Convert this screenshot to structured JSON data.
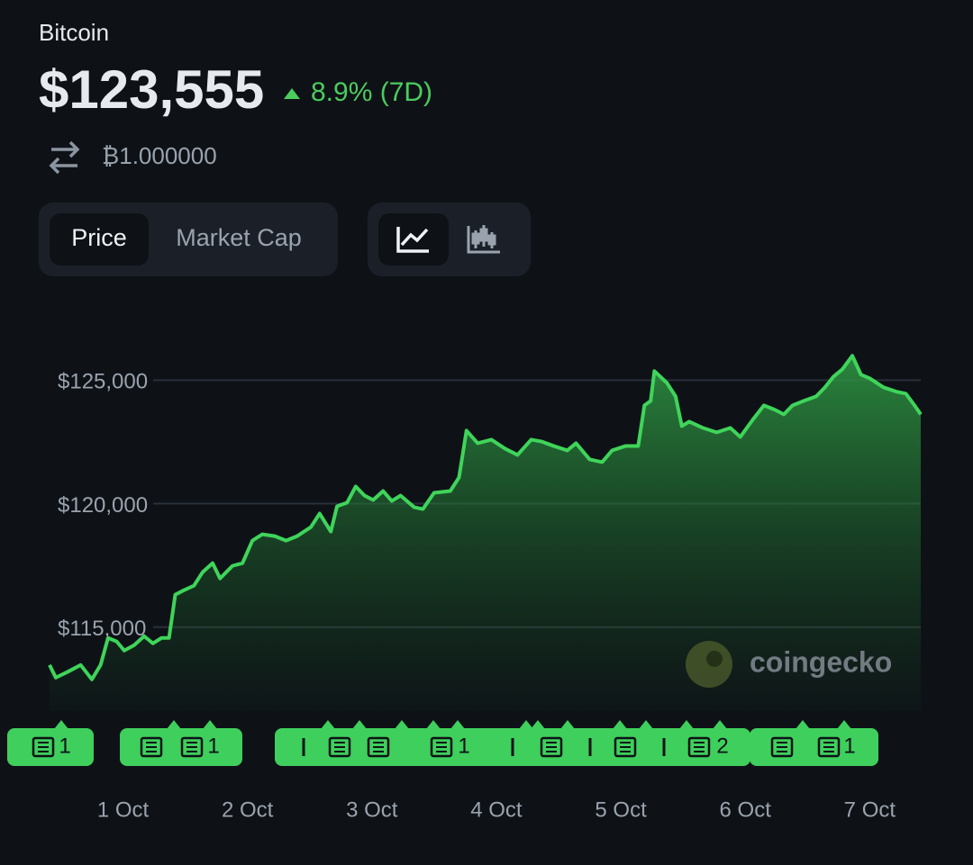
{
  "header": {
    "name": "Bitcoin",
    "price": "$123,555",
    "change": "8.9% (7D)",
    "btc_amount": "₿1.000000"
  },
  "tabs": [
    "Price",
    "Market Cap"
  ],
  "watermark": "coingecko",
  "news_counts": [
    1,
    1,
    1,
    2,
    1
  ],
  "chart_data": {
    "type": "line",
    "x": [
      0.41,
      0.46,
      0.55,
      0.66,
      0.75,
      0.82,
      0.88,
      0.95,
      1.01,
      1.09,
      1.17,
      1.24,
      1.31,
      1.37,
      1.42,
      1.49,
      1.57,
      1.64,
      1.72,
      1.78,
      1.88,
      1.96,
      2.04,
      2.12,
      2.22,
      2.31,
      2.4,
      2.51,
      2.58,
      2.67,
      2.72,
      2.8,
      2.87,
      2.94,
      3.01,
      3.09,
      3.16,
      3.23,
      3.34,
      3.41,
      3.5,
      3.63,
      3.7,
      3.76,
      3.85,
      3.96,
      4.07,
      4.17,
      4.28,
      4.36,
      4.46,
      4.57,
      4.64,
      4.75,
      4.85,
      4.93,
      5.04,
      5.14,
      5.19,
      5.24,
      5.27,
      5.37,
      5.44,
      5.49,
      5.55,
      5.66,
      5.77,
      5.88,
      5.96,
      6.06,
      6.15,
      6.24,
      6.31,
      6.38,
      6.47,
      6.57,
      6.64,
      6.71,
      6.78,
      6.86,
      6.93,
      7.0,
      7.11,
      7.22,
      7.29,
      7.36,
      7.41
    ],
    "series": [
      {
        "name": "Price",
        "color": "#3fd45a",
        "values": [
          113466,
          112955,
          113174,
          113466,
          112882,
          113466,
          114561,
          114415,
          114050,
          114269,
          114634,
          114342,
          114561,
          114561,
          116313,
          116495,
          116678,
          117225,
          117590,
          116970,
          117481,
          117590,
          118503,
          118758,
          118685,
          118503,
          118685,
          119050,
          119598,
          118868,
          119890,
          120036,
          120693,
          120328,
          120145,
          120510,
          120109,
          120328,
          119853,
          119780,
          120437,
          120510,
          121058,
          122956,
          122445,
          122591,
          122226,
          121970,
          122591,
          122518,
          122335,
          122153,
          122445,
          121788,
          121678,
          122153,
          122335,
          122335,
          123978,
          124160,
          125365,
          124890,
          124343,
          123138,
          123321,
          123065,
          122883,
          123065,
          122700,
          123394,
          123978,
          123795,
          123613,
          123978,
          124160,
          124343,
          124708,
          125146,
          125438,
          125986,
          125219,
          125073,
          124708,
          124525,
          124452,
          123978,
          123613
        ]
      }
    ],
    "xlim": [
      0.41,
      7.41
    ],
    "xticks": [
      {
        "value": 1,
        "label": "1 Oct"
      },
      {
        "value": 2,
        "label": "2 Oct"
      },
      {
        "value": 3,
        "label": "3 Oct"
      },
      {
        "value": 4,
        "label": "4 Oct"
      },
      {
        "value": 5,
        "label": "5 Oct"
      },
      {
        "value": 6,
        "label": "6 Oct"
      },
      {
        "value": 7,
        "label": "7 Oct"
      }
    ],
    "ylim": [
      111600,
      128000
    ],
    "yticks": [
      {
        "value": 115000,
        "label": "$115,000"
      },
      {
        "value": 120000,
        "label": "$120,000"
      },
      {
        "value": 125000,
        "label": "$125,000"
      }
    ],
    "grid": true
  }
}
